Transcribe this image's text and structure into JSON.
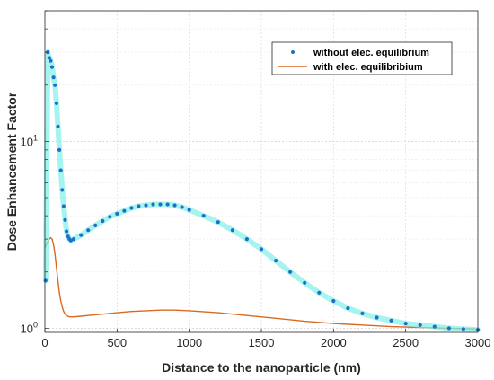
{
  "chart_data": {
    "type": "scatter",
    "xlabel": "Distance to the nanoparticle (nm)",
    "ylabel": "Dose Enhancement Factor",
    "xlim": [
      0,
      3000
    ],
    "ylim": [
      0.95,
      50
    ],
    "yscale": "log",
    "grid": true,
    "legend_position": "top-right",
    "x_ticks": [
      0,
      500,
      1000,
      1500,
      2000,
      2500,
      3000
    ],
    "x_tick_labels": [
      "0",
      "500",
      "1000",
      "1500",
      "2000",
      "2500",
      "3000"
    ],
    "y_ticks": [
      1,
      10
    ],
    "y_tick_labels": [
      "10^0",
      "10^1"
    ],
    "series": [
      {
        "name": "without elec. equilibrium",
        "style": "points",
        "color": "#1f6fc8",
        "halo_color": "#7ff0e8",
        "x": [
          5,
          20,
          30,
          40,
          50,
          60,
          70,
          80,
          90,
          100,
          110,
          120,
          130,
          140,
          150,
          160,
          170,
          180,
          200,
          250,
          300,
          350,
          400,
          450,
          500,
          550,
          600,
          650,
          700,
          750,
          800,
          850,
          900,
          950,
          1000,
          1100,
          1200,
          1300,
          1400,
          1500,
          1600,
          1700,
          1800,
          1900,
          2000,
          2100,
          2200,
          2300,
          2400,
          2500,
          2600,
          2700,
          2800,
          2900,
          3000
        ],
        "y": [
          1.8,
          30,
          28,
          27,
          25,
          22,
          20,
          16,
          12,
          9,
          7,
          5.5,
          4.5,
          3.8,
          3.3,
          3.1,
          3.0,
          2.95,
          3.0,
          3.15,
          3.35,
          3.55,
          3.75,
          3.95,
          4.1,
          4.25,
          4.4,
          4.5,
          4.55,
          4.6,
          4.6,
          4.6,
          4.55,
          4.45,
          4.3,
          4.0,
          3.7,
          3.35,
          3.0,
          2.65,
          2.3,
          2.0,
          1.75,
          1.55,
          1.4,
          1.28,
          1.2,
          1.14,
          1.1,
          1.06,
          1.04,
          1.02,
          1.0,
          0.99,
          0.98
        ]
      },
      {
        "name": "with elec. equilibribium",
        "style": "line",
        "color": "#d9691f",
        "x": [
          0,
          10,
          20,
          30,
          40,
          50,
          60,
          70,
          80,
          90,
          100,
          110,
          120,
          130,
          140,
          150,
          160,
          170,
          180,
          190,
          200,
          250,
          300,
          400,
          500,
          600,
          700,
          800,
          900,
          1000,
          1200,
          1400,
          1600,
          1800,
          2000,
          2200,
          2400,
          2600,
          2800,
          3000
        ],
        "y": [
          2.7,
          2.8,
          2.9,
          3.0,
          3.05,
          3.0,
          2.8,
          2.5,
          2.1,
          1.8,
          1.55,
          1.4,
          1.3,
          1.23,
          1.19,
          1.17,
          1.16,
          1.15,
          1.15,
          1.15,
          1.15,
          1.16,
          1.17,
          1.19,
          1.21,
          1.23,
          1.24,
          1.25,
          1.25,
          1.24,
          1.21,
          1.17,
          1.13,
          1.09,
          1.06,
          1.04,
          1.02,
          1.01,
          1.0,
          0.99
        ]
      }
    ]
  }
}
